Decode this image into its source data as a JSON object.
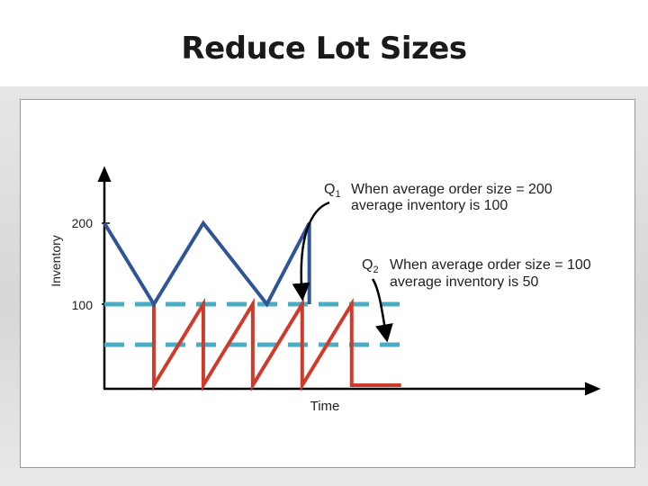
{
  "slide": {
    "title": "Reduce Lot Sizes"
  },
  "colors": {
    "q1_line": "#2f5597",
    "q2_line": "#d03a2b",
    "average_line": "#4bacc6",
    "axis": "#000000",
    "annotation_arrow": "#000000"
  },
  "annotations": {
    "q1": {
      "symbol": "Q",
      "subscript": "1",
      "line1": "When average order size = 200",
      "line2": "average inventory is 100"
    },
    "q2": {
      "symbol": "Q",
      "subscript": "2",
      "line1": "When average order size = 100",
      "line2": "average inventory is 50"
    }
  },
  "chart_data": {
    "type": "line",
    "title": "",
    "xlabel": "Time",
    "ylabel": "Inventory",
    "yticks": [
      100,
      200
    ],
    "ylim": [
      0,
      205
    ],
    "xlim": [
      0,
      6
    ],
    "grid": false,
    "series": [
      {
        "id": "q1",
        "style": "sawtooth",
        "points": [
          [
            0,
            200
          ],
          [
            0.7,
            100
          ],
          [
            1.4,
            200
          ],
          [
            2.3,
            100
          ],
          [
            2.9,
            200
          ],
          [
            2.9,
            100
          ]
        ]
      },
      {
        "id": "q2",
        "style": "sawtooth",
        "points": [
          [
            0.7,
            100
          ],
          [
            0.7,
            0
          ],
          [
            1.4,
            100
          ],
          [
            1.4,
            0
          ],
          [
            2.1,
            100
          ],
          [
            2.1,
            0
          ],
          [
            2.8,
            100
          ],
          [
            2.8,
            0
          ],
          [
            3.5,
            100
          ],
          [
            3.5,
            0
          ],
          [
            4.2,
            0
          ]
        ]
      },
      {
        "id": "q1-average",
        "style": "dashed",
        "points": [
          [
            0,
            100
          ],
          [
            4.2,
            100
          ]
        ]
      },
      {
        "id": "q2-average",
        "style": "dashed",
        "points": [
          [
            0,
            50
          ],
          [
            4.2,
            50
          ]
        ]
      }
    ]
  }
}
